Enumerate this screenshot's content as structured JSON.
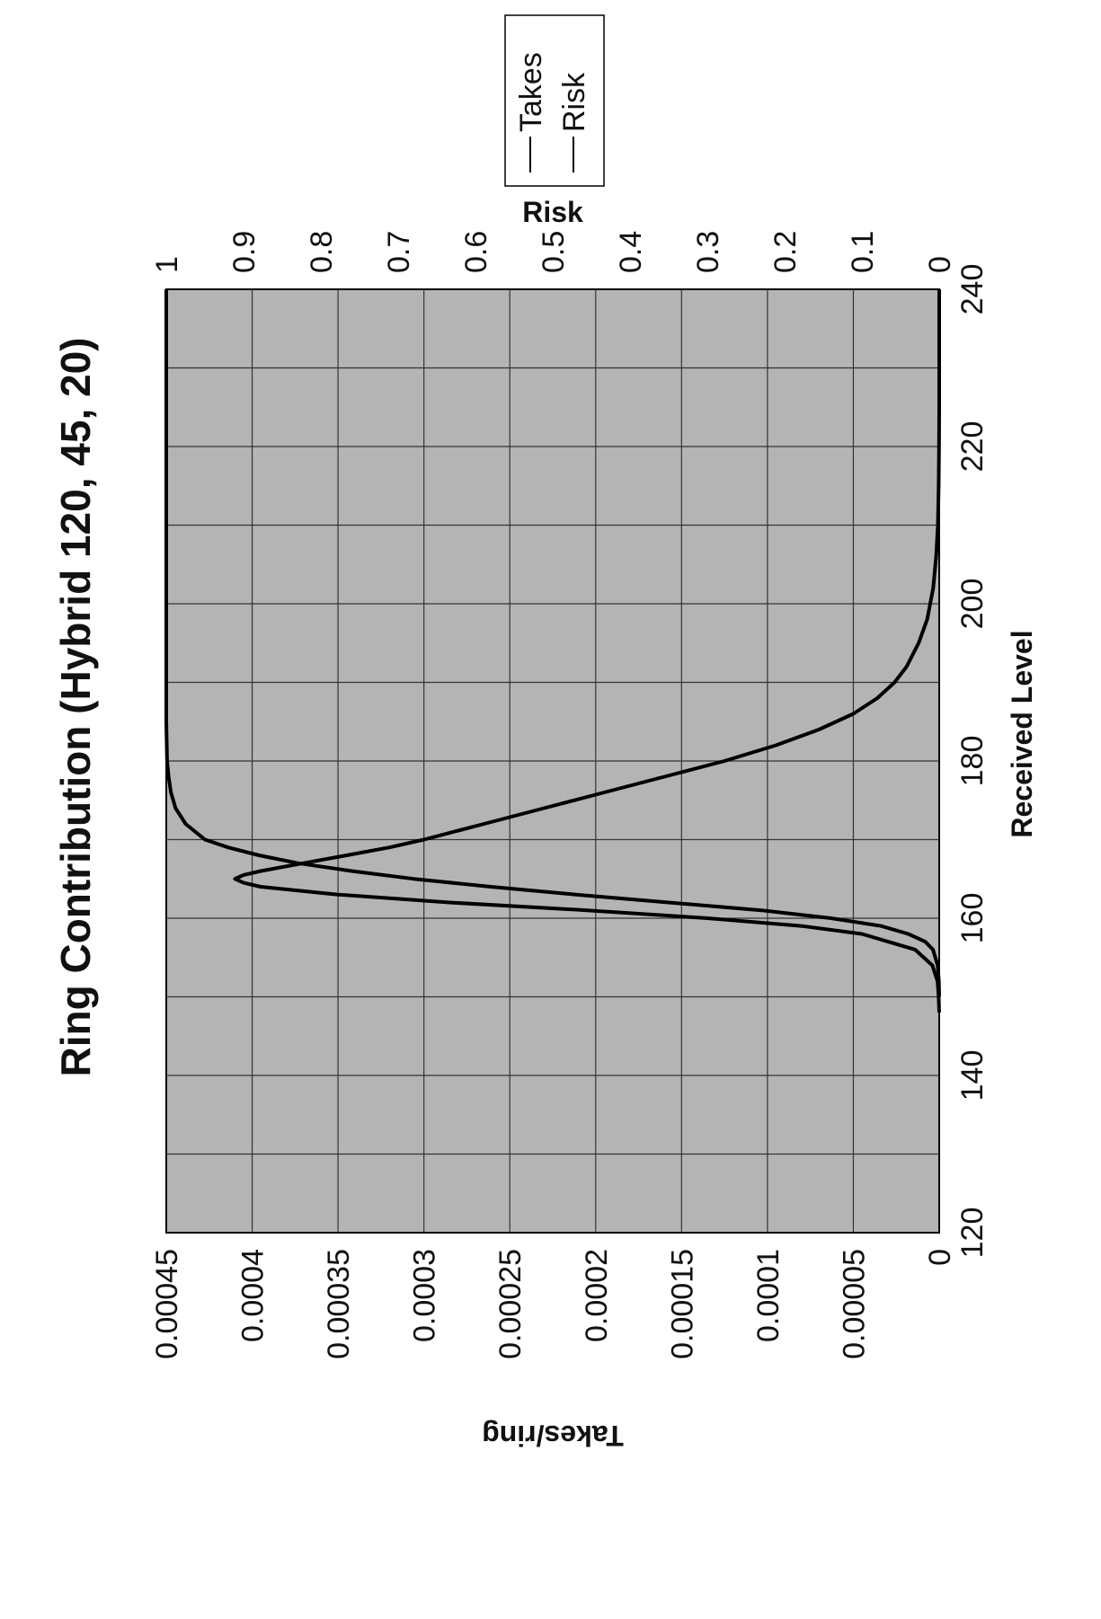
{
  "chart_data": {
    "type": "line",
    "title": "Ring Contribution (Hybrid 120, 45, 20)",
    "xlabel": "Received Level",
    "ylabel": "Takes/ring",
    "y2label": "Risk",
    "xlim": [
      120,
      240
    ],
    "ylim": [
      0,
      0.00045
    ],
    "y2lim": [
      0,
      1
    ],
    "x_ticks": [
      "120",
      "140",
      "160",
      "180",
      "200",
      "220",
      "240"
    ],
    "y_ticks": [
      "0",
      "0.00005",
      "0.0001",
      "0.00015",
      "0.0002",
      "0.00025",
      "0.0003",
      "0.00035",
      "0.0004",
      "0.00045"
    ],
    "y2_ticks": [
      "0",
      "0.1",
      "0.2",
      "0.3",
      "0.4",
      "0.5",
      "0.6",
      "0.7",
      "0.8",
      "0.9",
      "1"
    ],
    "grid": true,
    "legend_position": "top-right",
    "series": [
      {
        "name": "Takes",
        "axis": "left",
        "x": [
          148,
          150,
          152,
          154,
          156,
          158,
          159,
          160,
          161,
          162,
          163,
          164,
          164.5,
          165,
          165.5,
          166,
          167,
          168,
          169,
          170,
          172,
          174,
          176,
          178,
          180,
          182,
          184,
          186,
          188,
          190,
          192,
          195,
          198,
          202,
          206,
          210,
          215,
          220,
          225,
          230,
          235,
          240
        ],
        "y": [
          0,
          3e-07,
          1e-06,
          4e-06,
          1.4e-05,
          4.5e-05,
          8e-05,
          0.000135,
          0.000205,
          0.000285,
          0.00035,
          0.000395,
          0.000405,
          0.00041,
          0.000405,
          0.000395,
          0.00037,
          0.000345,
          0.00032,
          0.0003,
          0.000265,
          0.00023,
          0.000195,
          0.00016,
          0.000125,
          9.5e-05,
          7e-05,
          5e-05,
          3.6e-05,
          2.6e-05,
          1.9e-05,
          1.2e-05,
          7e-06,
          3.5e-06,
          1.8e-06,
          8e-07,
          3e-07,
          1e-07,
          0,
          0,
          0,
          0
        ]
      },
      {
        "name": "Risk",
        "axis": "right",
        "x": [
          150,
          152,
          154,
          156,
          157,
          158,
          159,
          160,
          161,
          162,
          163,
          164,
          165,
          166,
          167,
          168,
          169,
          170,
          172,
          174,
          176,
          178,
          180,
          185,
          190,
          200,
          220,
          240
        ],
        "y": [
          0,
          0.0005,
          0.002,
          0.008,
          0.018,
          0.04,
          0.075,
          0.14,
          0.23,
          0.35,
          0.47,
          0.58,
          0.68,
          0.76,
          0.83,
          0.88,
          0.92,
          0.95,
          0.975,
          0.988,
          0.994,
          0.997,
          0.999,
          1,
          1,
          1,
          1,
          1
        ]
      }
    ]
  }
}
